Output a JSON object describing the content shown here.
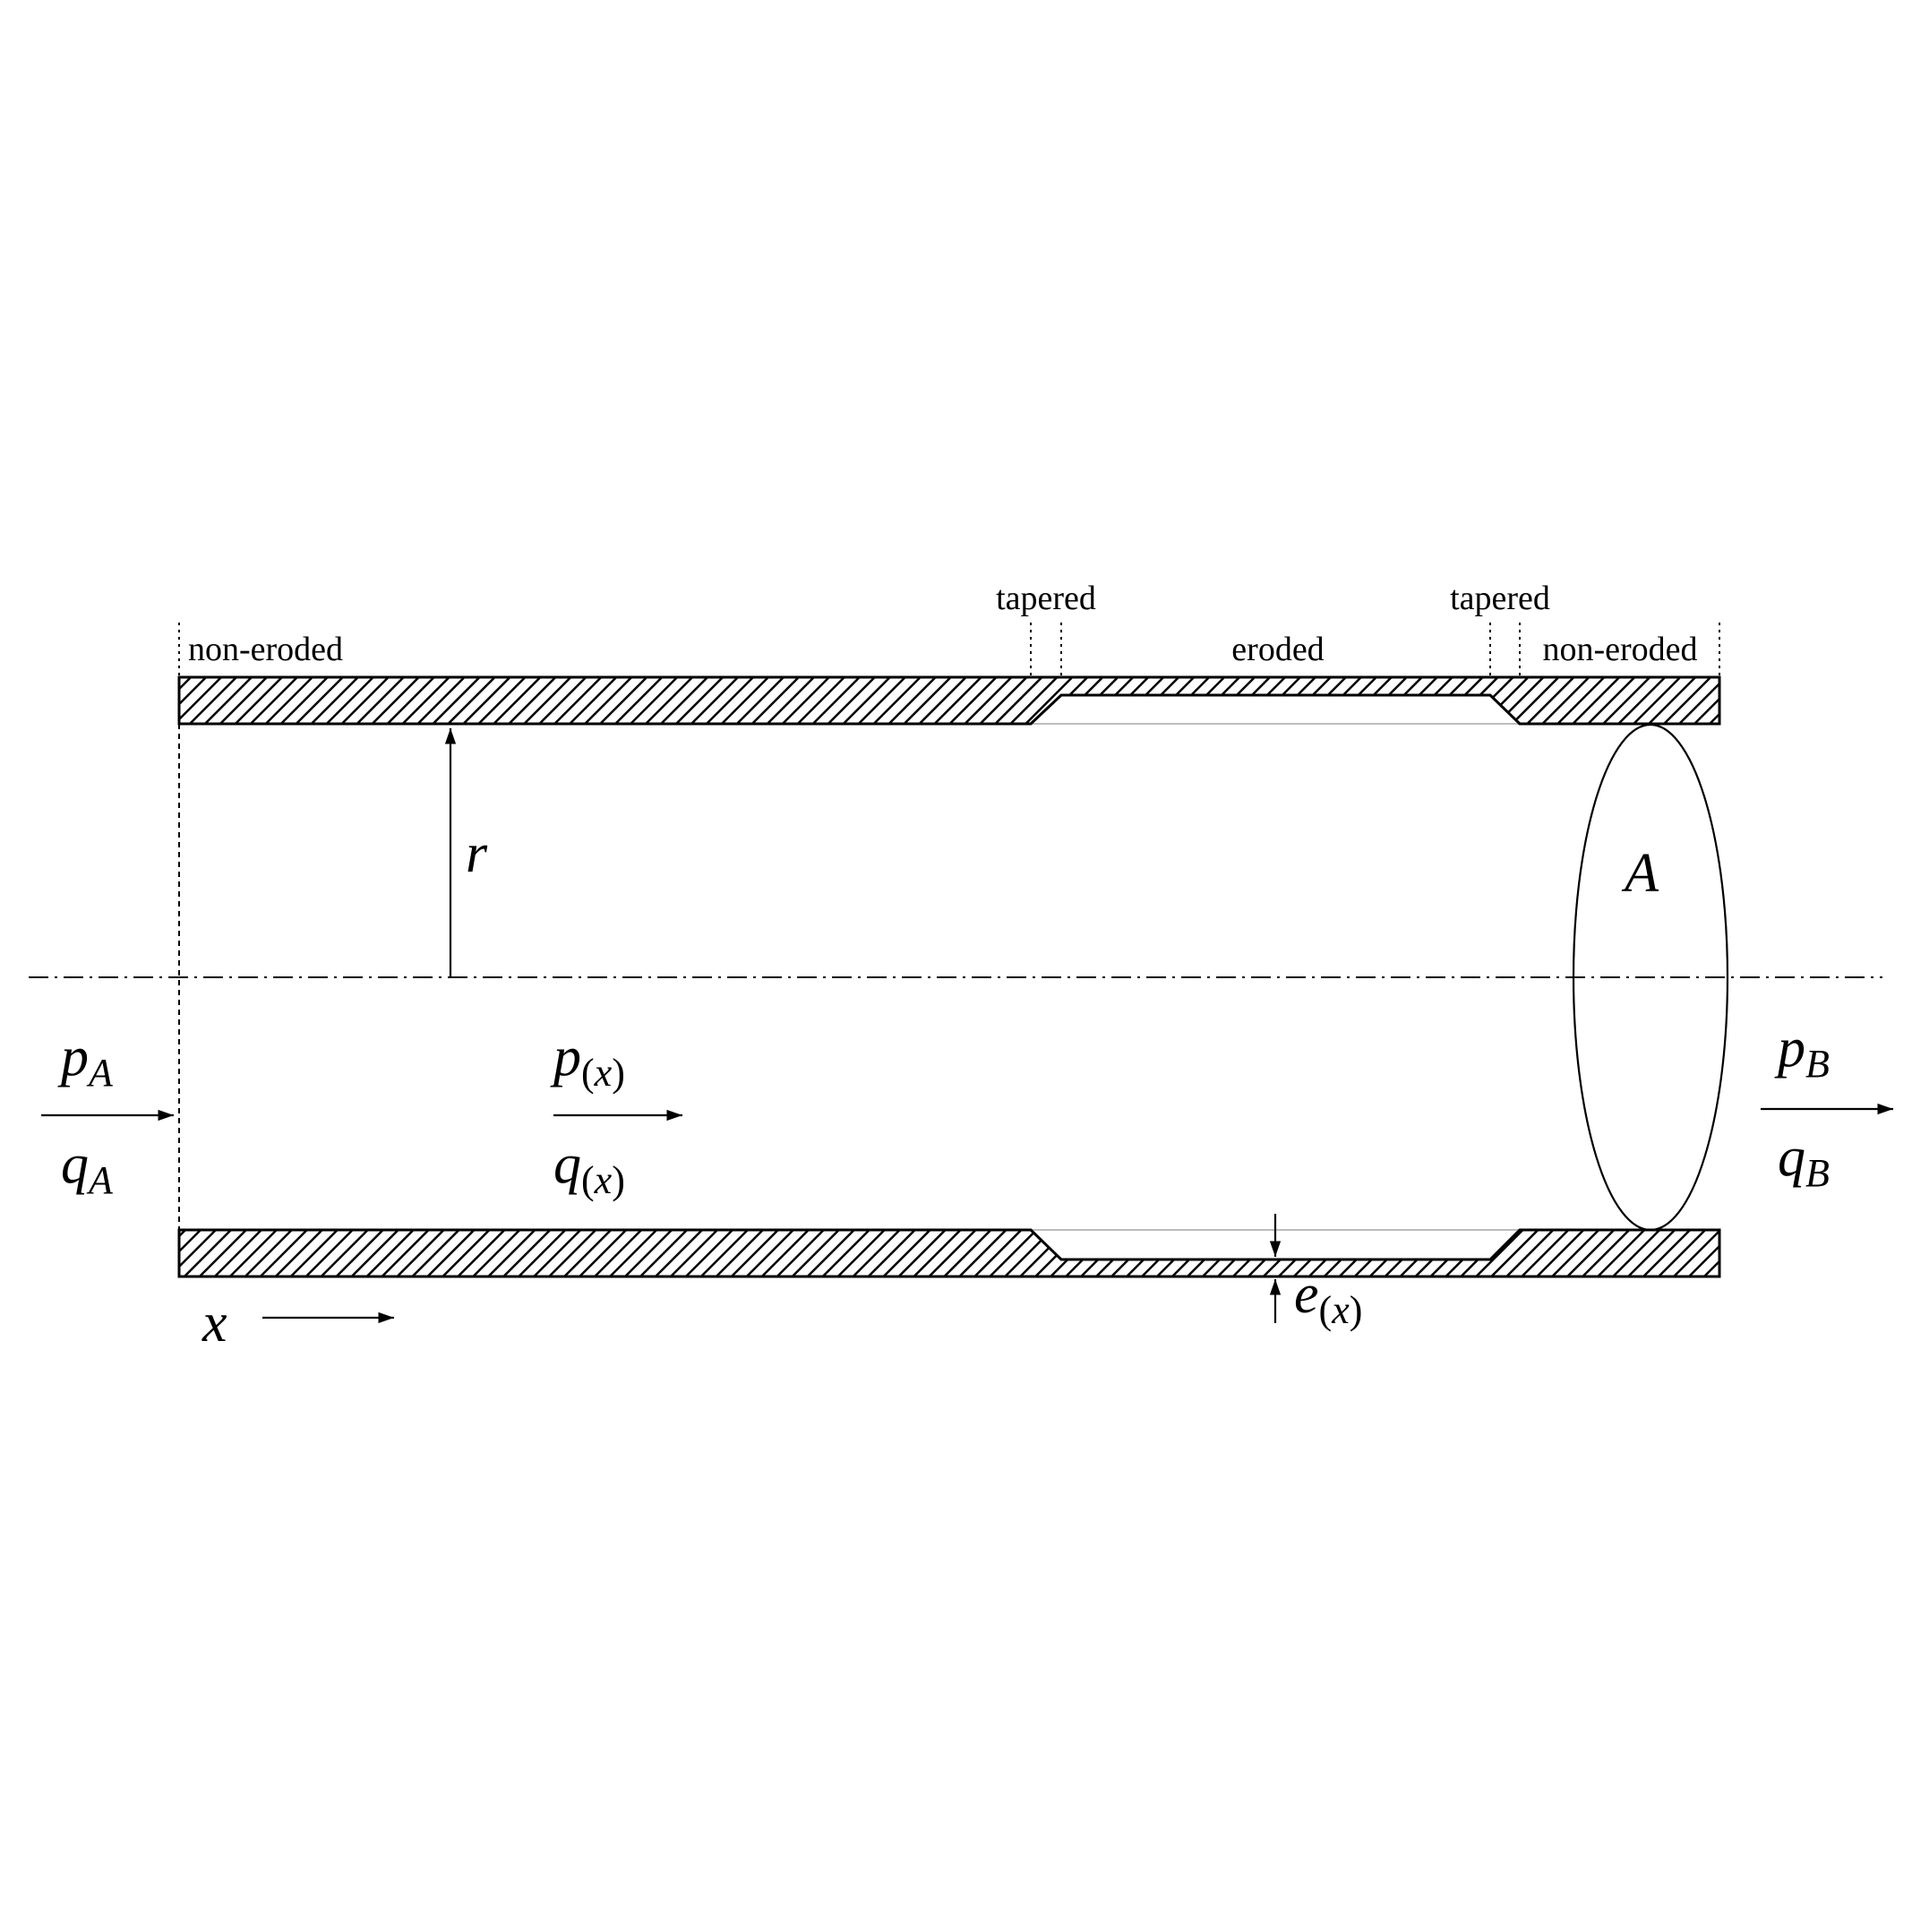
{
  "zones": {
    "left_non_eroded": "non-eroded",
    "tapered_1": "tapered",
    "eroded": "eroded",
    "tapered_2": "tapered",
    "right_non_eroded": "non-eroded"
  },
  "symbols": {
    "radius": "r",
    "area": "A",
    "axial": "x",
    "inlet_pressure": {
      "base": "p",
      "sub": "A"
    },
    "inlet_flow": {
      "base": "q",
      "sub": "A"
    },
    "local_pressure": {
      "base": "p",
      "sub_open": "(",
      "sub_var": "x",
      "sub_close": ")"
    },
    "local_flow": {
      "base": "q",
      "sub_open": "(",
      "sub_var": "x",
      "sub_close": ")"
    },
    "outlet_pressure": {
      "base": "p",
      "sub": "B"
    },
    "outlet_flow": {
      "base": "q",
      "sub": "B"
    },
    "erosion_depth": {
      "base": "e",
      "sub_open": "(",
      "sub_var": "x",
      "sub_close": ")"
    }
  }
}
